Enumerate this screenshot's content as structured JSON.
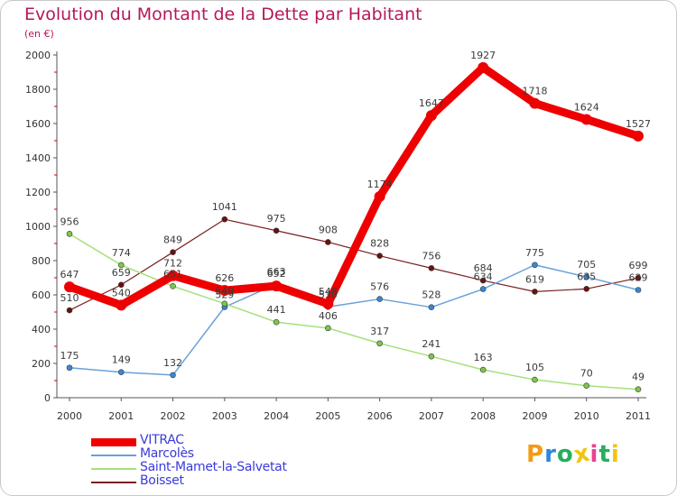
{
  "title": "Evolution du Montant de la Dette par Habitant",
  "subtitle": "(en €)",
  "logo": {
    "text": "Proxiti",
    "letters": [
      "P",
      "r",
      "o",
      "x",
      "i",
      "t",
      "i"
    ],
    "colors": [
      "#f39c12",
      "#2e86de",
      "#27ae60",
      "#f1c40f",
      "#e84393",
      "#27ae60",
      "#f1c40f"
    ]
  },
  "chart_data": {
    "type": "line",
    "x": [
      "2000",
      "2001",
      "2002",
      "2003",
      "2004",
      "2005",
      "2006",
      "2007",
      "2008",
      "2009",
      "2010",
      "2011"
    ],
    "ylim": [
      0,
      2000
    ],
    "yticks": [
      0,
      200,
      400,
      600,
      800,
      1000,
      1200,
      1400,
      1600,
      1800,
      2000
    ],
    "grid": false,
    "legend_position": "bottom-left",
    "series": [
      {
        "name": "VITRAC",
        "color": "#ee0000",
        "point_color": "#ee0000",
        "width": 9,
        "marker": 6,
        "values": [
          647,
          540,
          712,
          626,
          652,
          548,
          1174,
          1647,
          1927,
          1718,
          1624,
          1527
        ],
        "labels": [
          "647",
          "540",
          "712",
          "626",
          "652",
          "548",
          "1174",
          "1647",
          "1927",
          "1718",
          "1624",
          "1527"
        ]
      },
      {
        "name": "Marcolès",
        "color": "#6aa0d8",
        "point_color": "#3a86d6",
        "width": 1.5,
        "marker": 3,
        "values": [
          175,
          149,
          132,
          529,
          663,
          530,
          576,
          528,
          634,
          775,
          705,
          629
        ],
        "labels": [
          "175",
          "149",
          "132",
          "529",
          "663",
          "530",
          "576",
          "528",
          "634",
          "775",
          "705",
          "629"
        ]
      },
      {
        "name": "Saint-Mamet-la-Salvetat",
        "color": "#a6e07a",
        "point_color": "#7cc74a",
        "width": 1.5,
        "marker": 3,
        "values": [
          956,
          774,
          651,
          549,
          441,
          406,
          317,
          241,
          163,
          105,
          70,
          49
        ],
        "labels": [
          "956",
          "774",
          "651",
          "549",
          "441",
          "406",
          "317",
          "241",
          "163",
          "105",
          "70",
          "49"
        ]
      },
      {
        "name": "Boisset",
        "color": "#7a2020",
        "point_color": "#6a1010",
        "width": 1.2,
        "marker": 3,
        "values": [
          510,
          659,
          849,
          1041,
          975,
          908,
          828,
          756,
          684,
          619,
          635,
          699
        ],
        "labels": [
          "510",
          "659",
          "849",
          "1041",
          "975",
          "908",
          "828",
          "756",
          "684",
          "619",
          "635",
          "699"
        ]
      }
    ]
  }
}
